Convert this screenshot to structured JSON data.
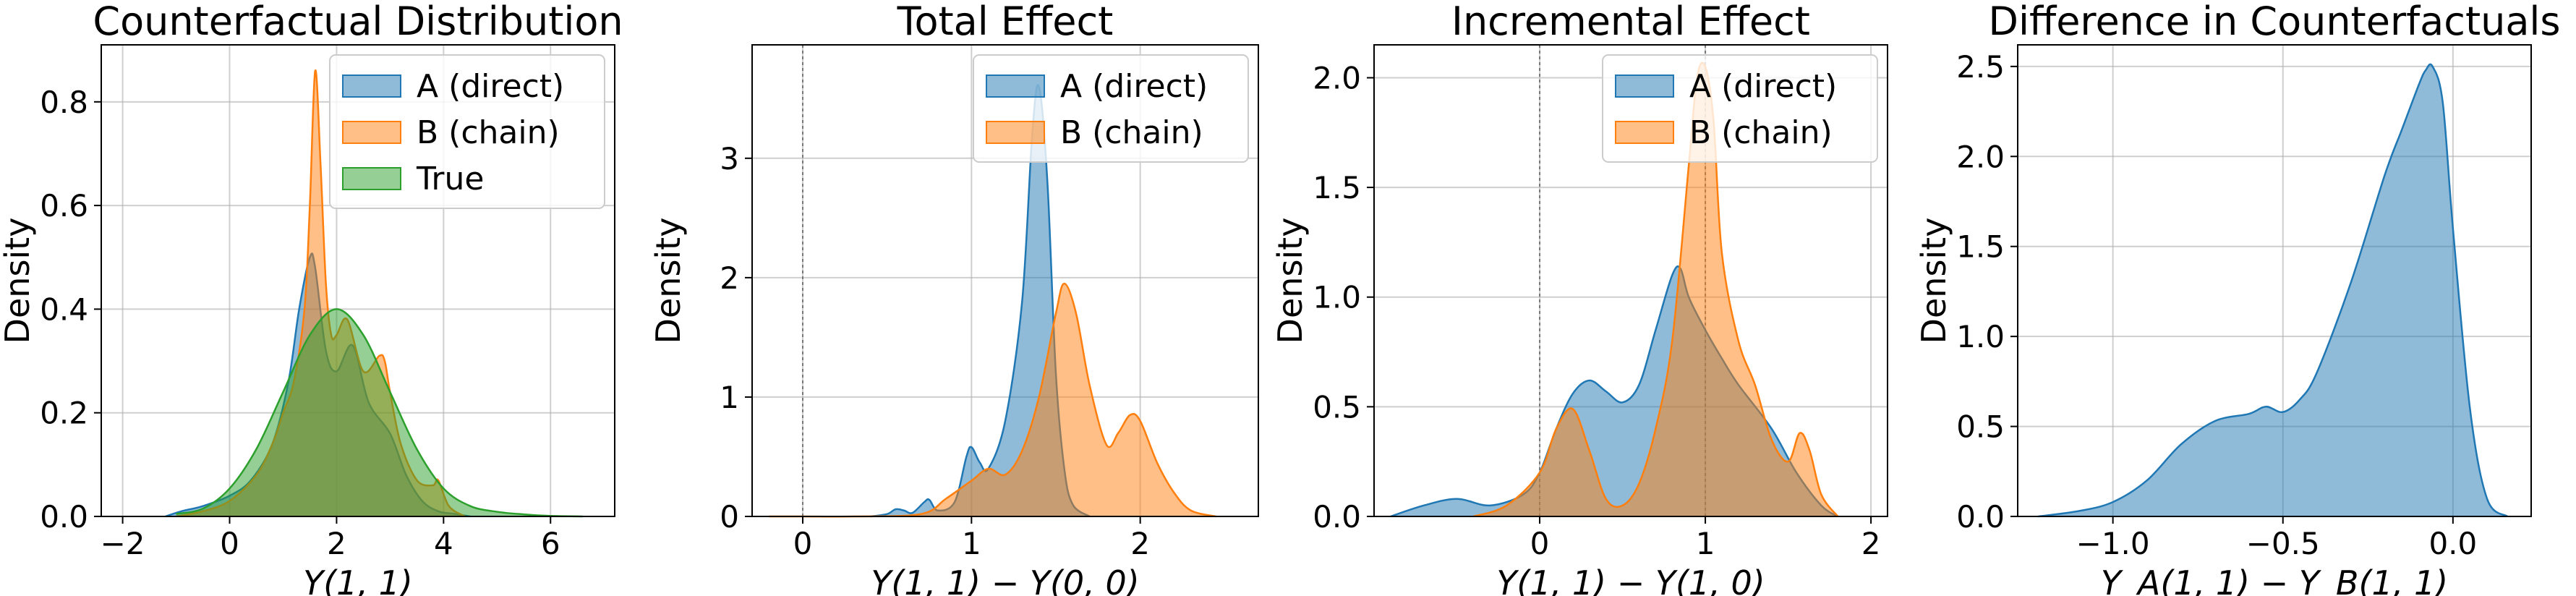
{
  "colors": {
    "A": "#1f77b4",
    "B": "#ff7f0e",
    "True": "#2ca02c"
  },
  "chart_data": [
    {
      "type": "area",
      "title": "Counterfactual Distribution",
      "xlabel": "Y(1, 1)",
      "ylabel": "Density",
      "xlim": [
        -2.4,
        7.2
      ],
      "ylim": [
        0,
        0.91
      ],
      "xticks": [
        -2,
        0,
        2,
        4,
        6
      ],
      "xtick_labels": [
        "−2",
        "0",
        "2",
        "4",
        "6"
      ],
      "yticks": [
        0,
        0.2,
        0.4,
        0.6,
        0.8
      ],
      "ytick_labels": [
        "0.0",
        "0.2",
        "0.4",
        "0.6",
        "0.8"
      ],
      "vlines": [],
      "legend": "top-right",
      "series": [
        {
          "name": "A (direct)",
          "color_key": "A",
          "x": [
            -1.2,
            -0.9,
            -0.5,
            0.0,
            0.4,
            0.8,
            1.1,
            1.3,
            1.5,
            1.6,
            1.8,
            2.0,
            2.3,
            2.6,
            3.0,
            3.3,
            3.6,
            3.9,
            4.2,
            4.5
          ],
          "y": [
            0.0,
            0.01,
            0.02,
            0.04,
            0.07,
            0.14,
            0.26,
            0.4,
            0.5,
            0.48,
            0.32,
            0.28,
            0.33,
            0.22,
            0.16,
            0.08,
            0.03,
            0.01,
            0.005,
            0.0
          ]
        },
        {
          "name": "B (chain)",
          "color_key": "B",
          "x": [
            -1.0,
            -0.5,
            0.0,
            0.5,
            0.8,
            1.0,
            1.2,
            1.4,
            1.5,
            1.6,
            1.7,
            1.8,
            1.9,
            2.0,
            2.2,
            2.5,
            2.8,
            2.9,
            3.0,
            3.2,
            3.5,
            3.8,
            3.9,
            4.1,
            4.4
          ],
          "y": [
            0.0,
            0.01,
            0.03,
            0.08,
            0.14,
            0.2,
            0.26,
            0.4,
            0.6,
            0.86,
            0.68,
            0.45,
            0.35,
            0.35,
            0.38,
            0.28,
            0.31,
            0.3,
            0.24,
            0.14,
            0.07,
            0.06,
            0.07,
            0.02,
            0.0
          ]
        },
        {
          "name": "True",
          "color_key": "True",
          "x": [
            -1.0,
            -0.5,
            0.0,
            0.5,
            1.0,
            1.5,
            2.0,
            2.5,
            3.0,
            3.5,
            4.0,
            4.5,
            5.0,
            5.5,
            6.0,
            6.6
          ],
          "y": [
            0.005,
            0.015,
            0.054,
            0.13,
            0.24,
            0.35,
            0.4,
            0.35,
            0.24,
            0.13,
            0.054,
            0.02,
            0.009,
            0.004,
            0.001,
            0.0
          ]
        }
      ]
    },
    {
      "type": "area",
      "title": "Total Effect",
      "xlabel": "Y(1, 1) − Y(0, 0)",
      "ylabel": "Density",
      "xlim": [
        -0.3,
        2.7
      ],
      "ylim": [
        0,
        3.95
      ],
      "xticks": [
        0,
        1,
        2
      ],
      "xtick_labels": [
        "0",
        "1",
        "2"
      ],
      "yticks": [
        0,
        1,
        2,
        3
      ],
      "ytick_labels": [
        "0",
        "1",
        "2",
        "3"
      ],
      "vlines": [
        0
      ],
      "legend": "top-right",
      "series": [
        {
          "name": "A (direct)",
          "color_key": "A",
          "x": [
            0.4,
            0.5,
            0.55,
            0.6,
            0.65,
            0.72,
            0.75,
            0.8,
            0.9,
            0.97,
            1.0,
            1.05,
            1.1,
            1.2,
            1.3,
            1.36,
            1.4,
            1.45,
            1.5,
            1.55,
            1.6,
            1.7
          ],
          "y": [
            0.0,
            0.02,
            0.06,
            0.05,
            0.03,
            0.12,
            0.14,
            0.05,
            0.12,
            0.5,
            0.58,
            0.45,
            0.4,
            0.8,
            1.8,
            3.2,
            3.6,
            2.8,
            1.2,
            0.4,
            0.1,
            0.0
          ]
        },
        {
          "name": "B (chain)",
          "color_key": "B",
          "x": [
            -0.2,
            0.0,
            0.3,
            0.7,
            0.85,
            1.0,
            1.1,
            1.2,
            1.3,
            1.4,
            1.5,
            1.55,
            1.62,
            1.7,
            1.8,
            1.87,
            1.94,
            2.0,
            2.1,
            2.2,
            2.3,
            2.45
          ],
          "y": [
            0.0,
            0.0,
            0.0,
            0.02,
            0.15,
            0.3,
            0.4,
            0.35,
            0.55,
            1.0,
            1.7,
            1.95,
            1.7,
            1.1,
            0.6,
            0.7,
            0.85,
            0.8,
            0.45,
            0.2,
            0.05,
            0.0
          ]
        }
      ]
    },
    {
      "type": "area",
      "title": "Incremental Effect",
      "xlabel": "Y(1, 1) − Y(1, 0)",
      "ylabel": "Density",
      "xlim": [
        -1.0,
        2.1
      ],
      "ylim": [
        0,
        2.15
      ],
      "xticks": [
        0,
        1,
        2
      ],
      "xtick_labels": [
        "0",
        "1",
        "2"
      ],
      "yticks": [
        0,
        0.5,
        1.0,
        1.5,
        2.0
      ],
      "ytick_labels": [
        "0.0",
        "0.5",
        "1.0",
        "1.5",
        "2.0"
      ],
      "vlines": [
        0,
        1
      ],
      "legend": "top-right",
      "series": [
        {
          "name": "A (direct)",
          "color_key": "A",
          "x": [
            -0.9,
            -0.7,
            -0.5,
            -0.3,
            -0.1,
            0.0,
            0.1,
            0.2,
            0.3,
            0.4,
            0.5,
            0.6,
            0.7,
            0.8,
            0.85,
            0.9,
            1.0,
            1.1,
            1.2,
            1.4,
            1.55,
            1.7,
            1.8
          ],
          "y": [
            0.0,
            0.05,
            0.08,
            0.05,
            0.1,
            0.2,
            0.4,
            0.56,
            0.62,
            0.57,
            0.52,
            0.6,
            0.85,
            1.1,
            1.13,
            1.0,
            0.85,
            0.72,
            0.6,
            0.4,
            0.2,
            0.05,
            0.0
          ]
        },
        {
          "name": "B (chain)",
          "color_key": "B",
          "x": [
            -0.4,
            -0.2,
            0.0,
            0.1,
            0.2,
            0.3,
            0.4,
            0.5,
            0.6,
            0.7,
            0.8,
            0.9,
            0.95,
            1.0,
            1.05,
            1.1,
            1.2,
            1.3,
            1.4,
            1.5,
            1.57,
            1.63,
            1.7,
            1.8
          ],
          "y": [
            0.0,
            0.05,
            0.2,
            0.4,
            0.49,
            0.3,
            0.08,
            0.05,
            0.15,
            0.4,
            0.8,
            1.6,
            2.0,
            2.05,
            1.8,
            1.2,
            0.8,
            0.6,
            0.35,
            0.25,
            0.38,
            0.3,
            0.1,
            0.0
          ]
        }
      ]
    },
    {
      "type": "area",
      "title": "Difference in Counterfactuals",
      "xlabel": "Y_A(1, 1) − Y_B(1, 1)",
      "ylabel": "Density",
      "xlim": [
        -1.28,
        0.23
      ],
      "ylim": [
        0,
        2.62
      ],
      "xticks": [
        -1.0,
        -0.5,
        0.0
      ],
      "xtick_labels": [
        "−1.0",
        "−0.5",
        "0.0"
      ],
      "yticks": [
        0,
        0.5,
        1.0,
        1.5,
        2.0,
        2.5
      ],
      "ytick_labels": [
        "0.0",
        "0.5",
        "1.0",
        "1.5",
        "2.0",
        "2.5"
      ],
      "vlines": [],
      "legend": "none",
      "series": [
        {
          "name": "",
          "color_key": "A",
          "x": [
            -1.22,
            -1.1,
            -1.0,
            -0.9,
            -0.8,
            -0.7,
            -0.6,
            -0.55,
            -0.5,
            -0.45,
            -0.4,
            -0.3,
            -0.2,
            -0.15,
            -0.1,
            -0.08,
            -0.06,
            -0.03,
            0.0,
            0.05,
            0.1,
            0.16
          ],
          "y": [
            0.0,
            0.03,
            0.08,
            0.2,
            0.4,
            0.53,
            0.57,
            0.61,
            0.58,
            0.65,
            0.8,
            1.3,
            1.9,
            2.15,
            2.4,
            2.48,
            2.5,
            2.3,
            1.6,
            0.6,
            0.1,
            0.0
          ]
        }
      ]
    }
  ]
}
